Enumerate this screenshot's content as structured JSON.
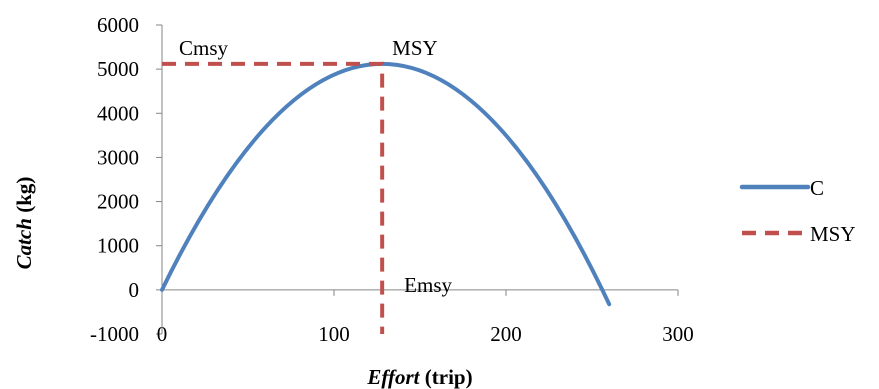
{
  "chart_data": {
    "type": "line",
    "title": "",
    "xlabel": {
      "italic": "Effort",
      "rest": " (trip)"
    },
    "ylabel": {
      "italic": "Catch",
      "rest": " (kg)"
    },
    "xlim": [
      0,
      300
    ],
    "ylim": [
      -1000,
      6000
    ],
    "x_ticks": [
      0,
      100,
      200,
      300
    ],
    "y_ticks": [
      -1000,
      0,
      1000,
      2000,
      3000,
      4000,
      5000,
      6000
    ],
    "x_tick_labels": [
      "0",
      "100",
      "200",
      "300"
    ],
    "y_tick_labels": [
      "-1000",
      "0",
      "1000",
      "2000",
      "3000",
      "4000",
      "5000",
      "6000"
    ],
    "grid": false,
    "legend_position": "right",
    "series": [
      {
        "name": "C",
        "style": "solid",
        "color": "#4F81BD",
        "points": [
          [
            0,
            0
          ],
          [
            128,
            5120
          ],
          [
            256,
            0
          ],
          [
            260,
            -326
          ]
        ]
      },
      {
        "name": "MSY",
        "style": "dashed",
        "color": "#C0504D",
        "points": [
          [
            0,
            5120
          ],
          [
            128,
            5120
          ],
          [
            128,
            -1000
          ]
        ]
      }
    ],
    "annotations": [
      {
        "text": "Cmsy",
        "x": 10,
        "y": 5120
      },
      {
        "text": "MSY",
        "x": 138,
        "y": 5120
      },
      {
        "text": "Emsy",
        "x": 140,
        "y": 0
      }
    ]
  }
}
